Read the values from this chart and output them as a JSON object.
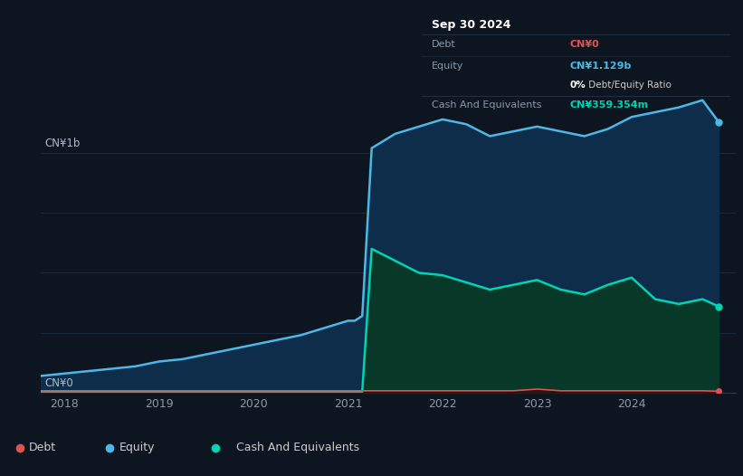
{
  "background_color": "#0d1520",
  "plot_bg_color": "#0d1520",
  "grid_color": "#1a2e45",
  "ylabel_text": "CN¥1b",
  "ylabel2_text": "CN¥0",
  "x_ticks": [
    2018,
    2019,
    2020,
    2021,
    2022,
    2023,
    2024
  ],
  "tooltip": {
    "title": "Sep 30 2024",
    "debt_label": "Debt",
    "debt_value": "CN¥0",
    "equity_label": "Equity",
    "equity_value": "CN¥1.129b",
    "ratio_value": " Debt/Equity Ratio",
    "ratio_bold": "0%",
    "cash_label": "Cash And Equivalents",
    "cash_value": "CN¥359.354m",
    "debt_color": "#e05252",
    "equity_color": "#4db8e8",
    "ratio_color": "#cccccc",
    "cash_color": "#00d4b4",
    "bg_color": "#050a10",
    "text_color": "#8899aa",
    "title_color": "#ffffff",
    "divider_color": "#1e2e3e"
  },
  "legend": {
    "debt_label": "Debt",
    "equity_label": "Equity",
    "cash_label": "Cash And Equivalents",
    "debt_color": "#e05252",
    "equity_color": "#4db8e8",
    "cash_color": "#00d4b4",
    "border_color": "#2a3a4a",
    "text_color": "#cccccc"
  },
  "equity_x": [
    2017.75,
    2018.0,
    2018.25,
    2018.5,
    2018.75,
    2019.0,
    2019.25,
    2019.5,
    2019.75,
    2020.0,
    2020.25,
    2020.5,
    2020.75,
    2021.0,
    2021.07,
    2021.15,
    2021.25,
    2021.5,
    2021.75,
    2022.0,
    2022.25,
    2022.5,
    2022.75,
    2023.0,
    2023.25,
    2023.5,
    2023.75,
    2024.0,
    2024.25,
    2024.5,
    2024.75,
    2024.92
  ],
  "equity_y": [
    0.07,
    0.08,
    0.09,
    0.1,
    0.11,
    0.13,
    0.14,
    0.16,
    0.18,
    0.2,
    0.22,
    0.24,
    0.27,
    0.3,
    0.3,
    0.32,
    1.02,
    1.08,
    1.11,
    1.14,
    1.12,
    1.07,
    1.09,
    1.11,
    1.09,
    1.07,
    1.1,
    1.15,
    1.17,
    1.19,
    1.22,
    1.13
  ],
  "cash_x": [
    2017.75,
    2018.0,
    2018.25,
    2018.5,
    2018.75,
    2019.0,
    2019.25,
    2019.5,
    2019.75,
    2020.0,
    2020.25,
    2020.5,
    2020.75,
    2021.0,
    2021.07,
    2021.15,
    2021.25,
    2021.5,
    2021.75,
    2022.0,
    2022.25,
    2022.5,
    2022.75,
    2023.0,
    2023.25,
    2023.5,
    2023.75,
    2024.0,
    2024.25,
    2024.5,
    2024.75,
    2024.92
  ],
  "cash_y": [
    0.005,
    0.005,
    0.005,
    0.005,
    0.005,
    0.005,
    0.005,
    0.005,
    0.005,
    0.005,
    0.005,
    0.005,
    0.005,
    0.005,
    0.005,
    0.005,
    0.6,
    0.55,
    0.5,
    0.49,
    0.46,
    0.43,
    0.45,
    0.47,
    0.43,
    0.41,
    0.45,
    0.48,
    0.39,
    0.37,
    0.39,
    0.36
  ],
  "debt_x": [
    2017.75,
    2018.0,
    2018.25,
    2018.5,
    2018.75,
    2019.0,
    2019.25,
    2019.5,
    2019.75,
    2020.0,
    2020.25,
    2020.5,
    2020.75,
    2021.0,
    2021.07,
    2021.15,
    2021.25,
    2021.5,
    2021.75,
    2022.0,
    2022.25,
    2022.5,
    2022.75,
    2023.0,
    2023.25,
    2023.5,
    2023.75,
    2024.0,
    2024.25,
    2024.5,
    2024.75,
    2024.92
  ],
  "debt_y": [
    0.008,
    0.008,
    0.008,
    0.008,
    0.008,
    0.008,
    0.008,
    0.008,
    0.008,
    0.008,
    0.008,
    0.008,
    0.008,
    0.008,
    0.008,
    0.008,
    0.008,
    0.008,
    0.008,
    0.008,
    0.008,
    0.008,
    0.008,
    0.015,
    0.008,
    0.008,
    0.008,
    0.008,
    0.008,
    0.008,
    0.008,
    0.006
  ],
  "ylim": [
    0,
    1.35
  ],
  "xlim_left": 2017.75,
  "xlim_right": 2025.1,
  "equity_line_color": "#4db8e8",
  "equity_fill_color": "#0e2d4a",
  "cash_line_color": "#00d4b4",
  "cash_fill_color": "#083828",
  "debt_line_color": "#e05252",
  "debt_fill_color": "#2a0a0a"
}
